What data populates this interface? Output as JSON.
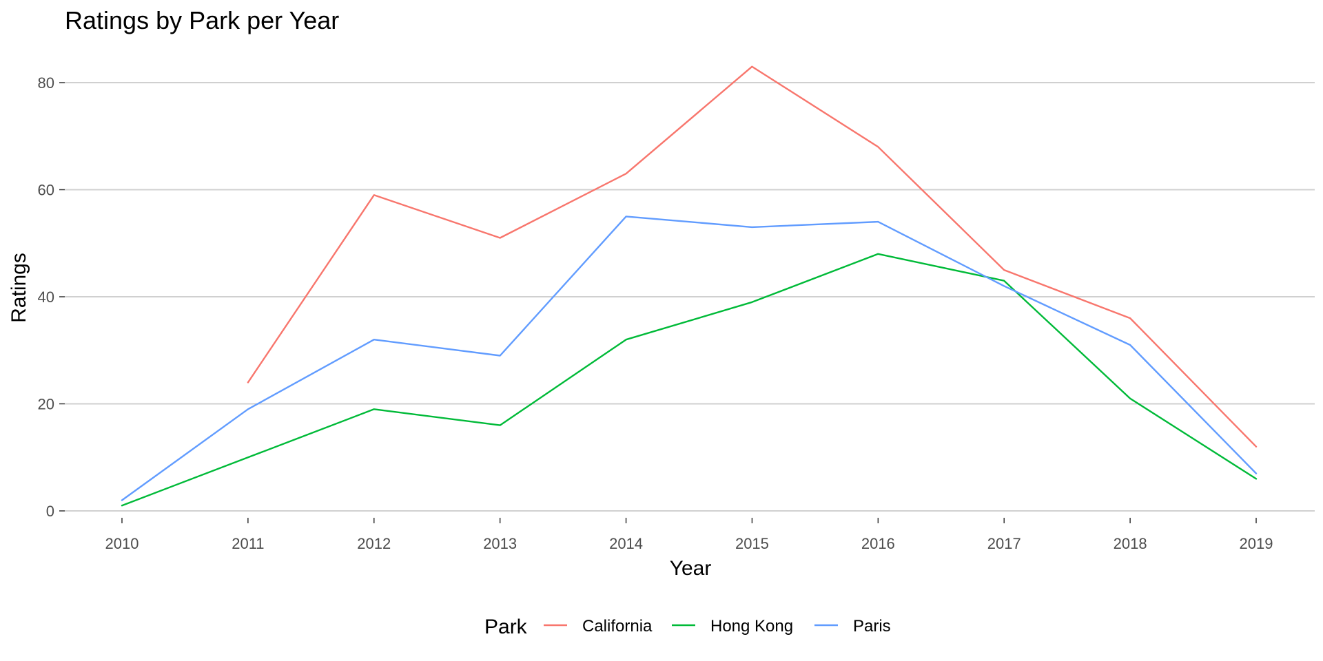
{
  "chart_data": {
    "type": "line",
    "title": "Ratings by Park per Year",
    "xlabel": "Year",
    "ylabel": "Ratings",
    "x": [
      2010,
      2011,
      2012,
      2013,
      2014,
      2015,
      2016,
      2017,
      2018,
      2019
    ],
    "x_ticks": [
      "2010",
      "2011",
      "2012",
      "2013",
      "2014",
      "2015",
      "2016",
      "2017",
      "2018",
      "2019"
    ],
    "y_ticks": [
      0,
      20,
      40,
      60,
      80
    ],
    "y_tick_labels": [
      "0",
      "20",
      "40",
      "60",
      "80"
    ],
    "ylim": [
      0,
      87
    ],
    "xlim": [
      2009.55,
      2019.45
    ],
    "grid": true,
    "legend_title": "Park",
    "legend_position": "bottom",
    "series": [
      {
        "name": "California",
        "color": "#F8766D",
        "values": [
          null,
          24,
          59,
          51,
          63,
          83,
          68,
          45,
          36,
          12
        ]
      },
      {
        "name": "Hong Kong",
        "color": "#00BA38",
        "values": [
          1,
          10,
          19,
          16,
          32,
          39,
          48,
          43,
          21,
          6
        ]
      },
      {
        "name": "Paris",
        "color": "#619CFF",
        "values": [
          2,
          19,
          32,
          29,
          55,
          53,
          54,
          42,
          31,
          7
        ]
      }
    ]
  }
}
